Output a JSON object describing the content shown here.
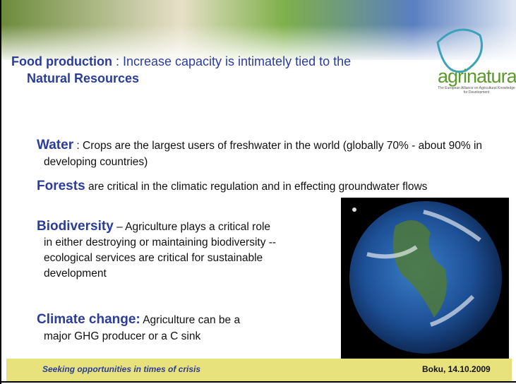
{
  "title": {
    "bold": "Food production",
    "rest": " : Increase capacity is intimately tied to the",
    "line2": "Natural Resources"
  },
  "logo": {
    "name": "agrinatura",
    "tagline": "The European Alliance on Agricultural Knowledge for Development"
  },
  "bullets": [
    {
      "heading": "Water",
      "text": " : Crops are the largest users of freshwater in the world (globally 70% - about 90% in developing countries)"
    },
    {
      "heading": "Forests",
      "text": " are critical in the climatic regulation and in effecting groundwater flows"
    },
    {
      "heading": "Biodiversity",
      "text": " – Agriculture plays a critical role in either destroying or maintaining biodiversity -- ecological services are critical for sustainable development"
    },
    {
      "heading": "Climate change:",
      "text": " Agriculture can be a major GHG producer or a C sink"
    }
  ],
  "footer": {
    "left": "Seeking opportunities in times of crisis",
    "right": "Boku, 14.10.2009"
  }
}
